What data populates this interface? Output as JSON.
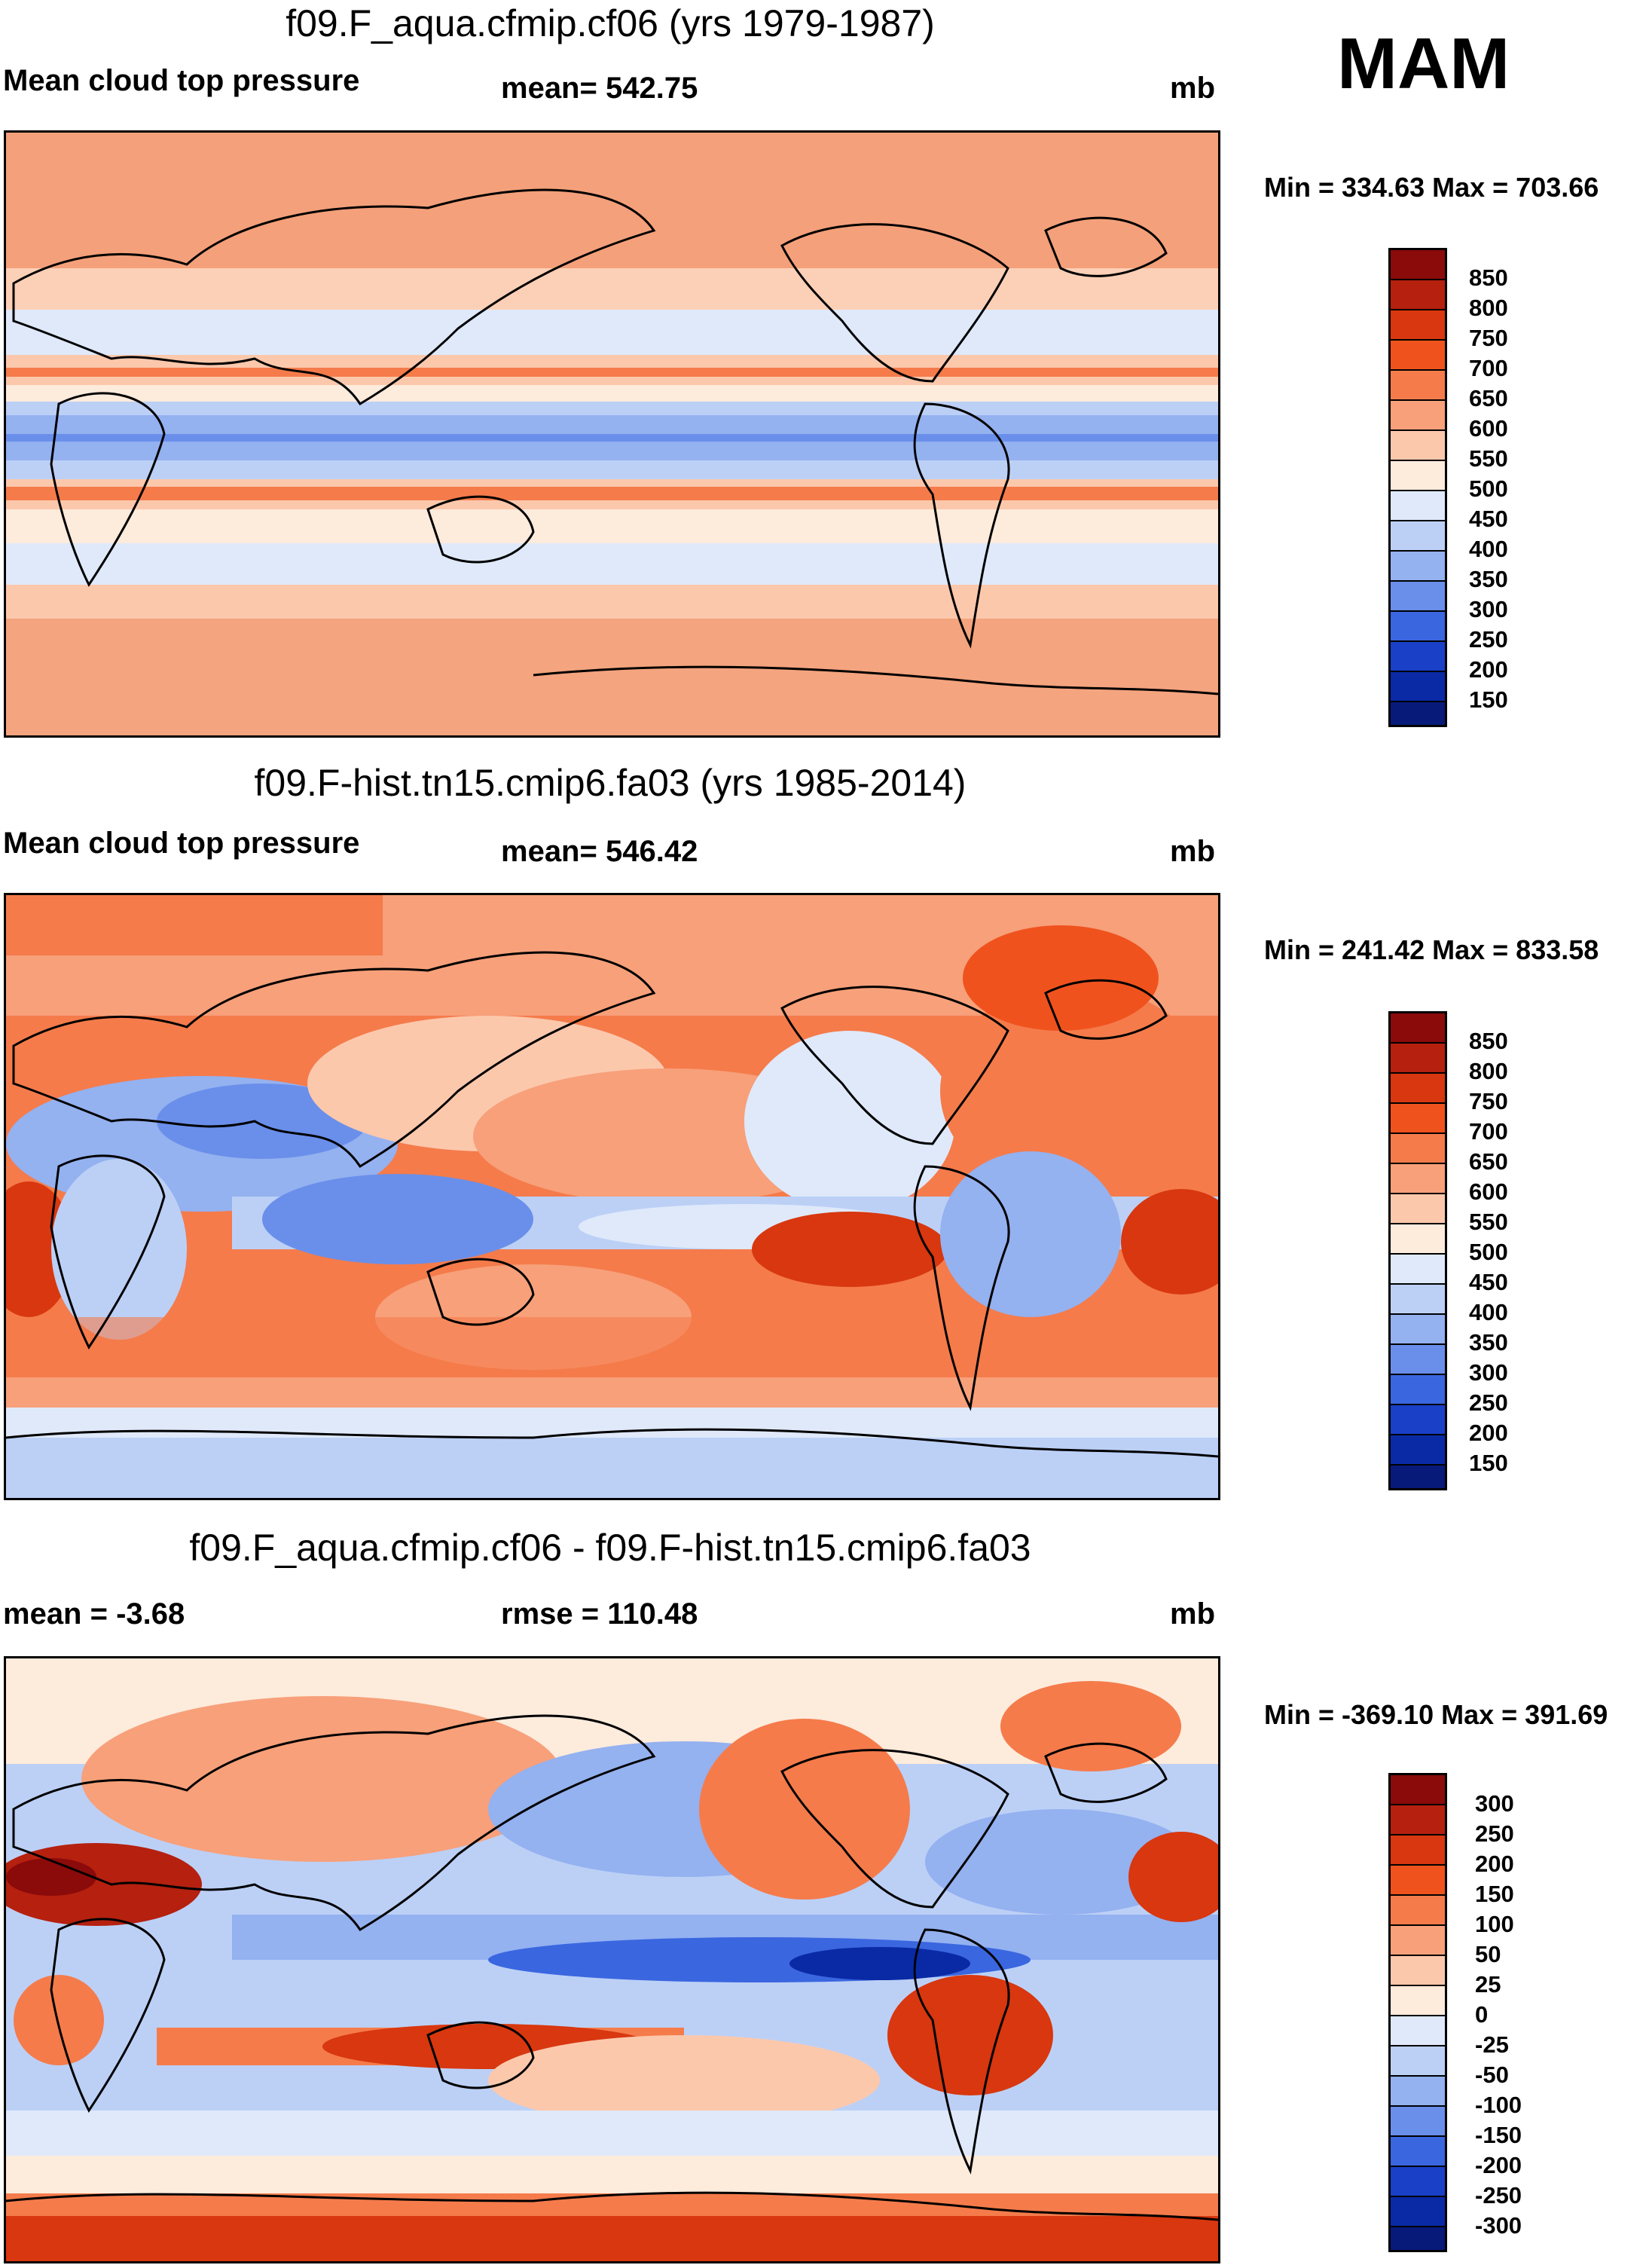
{
  "season": "MAM",
  "units": "mb",
  "panels": [
    {
      "title": "f09.F_aqua.cfmip.cf06 (yrs 1979-1987)",
      "left_label": "Mean cloud top pressure",
      "center_label": "mean= 542.75",
      "right_label": "mb",
      "minmax": "Min = 334.63 Max = 703.66",
      "colorbar_ticks": [
        "850",
        "800",
        "750",
        "700",
        "650",
        "600",
        "550",
        "500",
        "450",
        "400",
        "350",
        "300",
        "250",
        "200",
        "150"
      ]
    },
    {
      "title": "f09.F-hist.tn15.cmip6.fa03 (yrs 1985-2014)",
      "left_label": "Mean cloud top pressure",
      "center_label": "mean= 546.42",
      "right_label": "mb",
      "minmax": "Min = 241.42 Max = 833.58",
      "colorbar_ticks": [
        "850",
        "800",
        "750",
        "700",
        "650",
        "600",
        "550",
        "500",
        "450",
        "400",
        "350",
        "300",
        "250",
        "200",
        "150"
      ]
    },
    {
      "title": "f09.F_aqua.cfmip.cf06 - f09.F-hist.tn15.cmip6.fa03",
      "left_label": "mean =  -3.68",
      "center_label": "rmse = 110.48",
      "right_label": "mb",
      "minmax": "Min = -369.10 Max = 391.69",
      "colorbar_ticks": [
        "300",
        "250",
        "200",
        "150",
        "100",
        "50",
        "25",
        "0",
        "-25",
        "-50",
        "-100",
        "-150",
        "-200",
        "-250",
        "-300"
      ]
    }
  ],
  "colors": {
    "palette": [
      "#8b0a0a",
      "#b5200f",
      "#d8370f",
      "#f0521e",
      "#f57b4b",
      "#f7a07a",
      "#fcc8ac",
      "#fdebdc",
      "#dfe9fa",
      "#bcd0f6",
      "#94b1f0",
      "#6a8fea",
      "#3a66e0",
      "#1a40c8",
      "#0a2aa5",
      "#071a7a"
    ],
    "continent_line": "#000000"
  }
}
